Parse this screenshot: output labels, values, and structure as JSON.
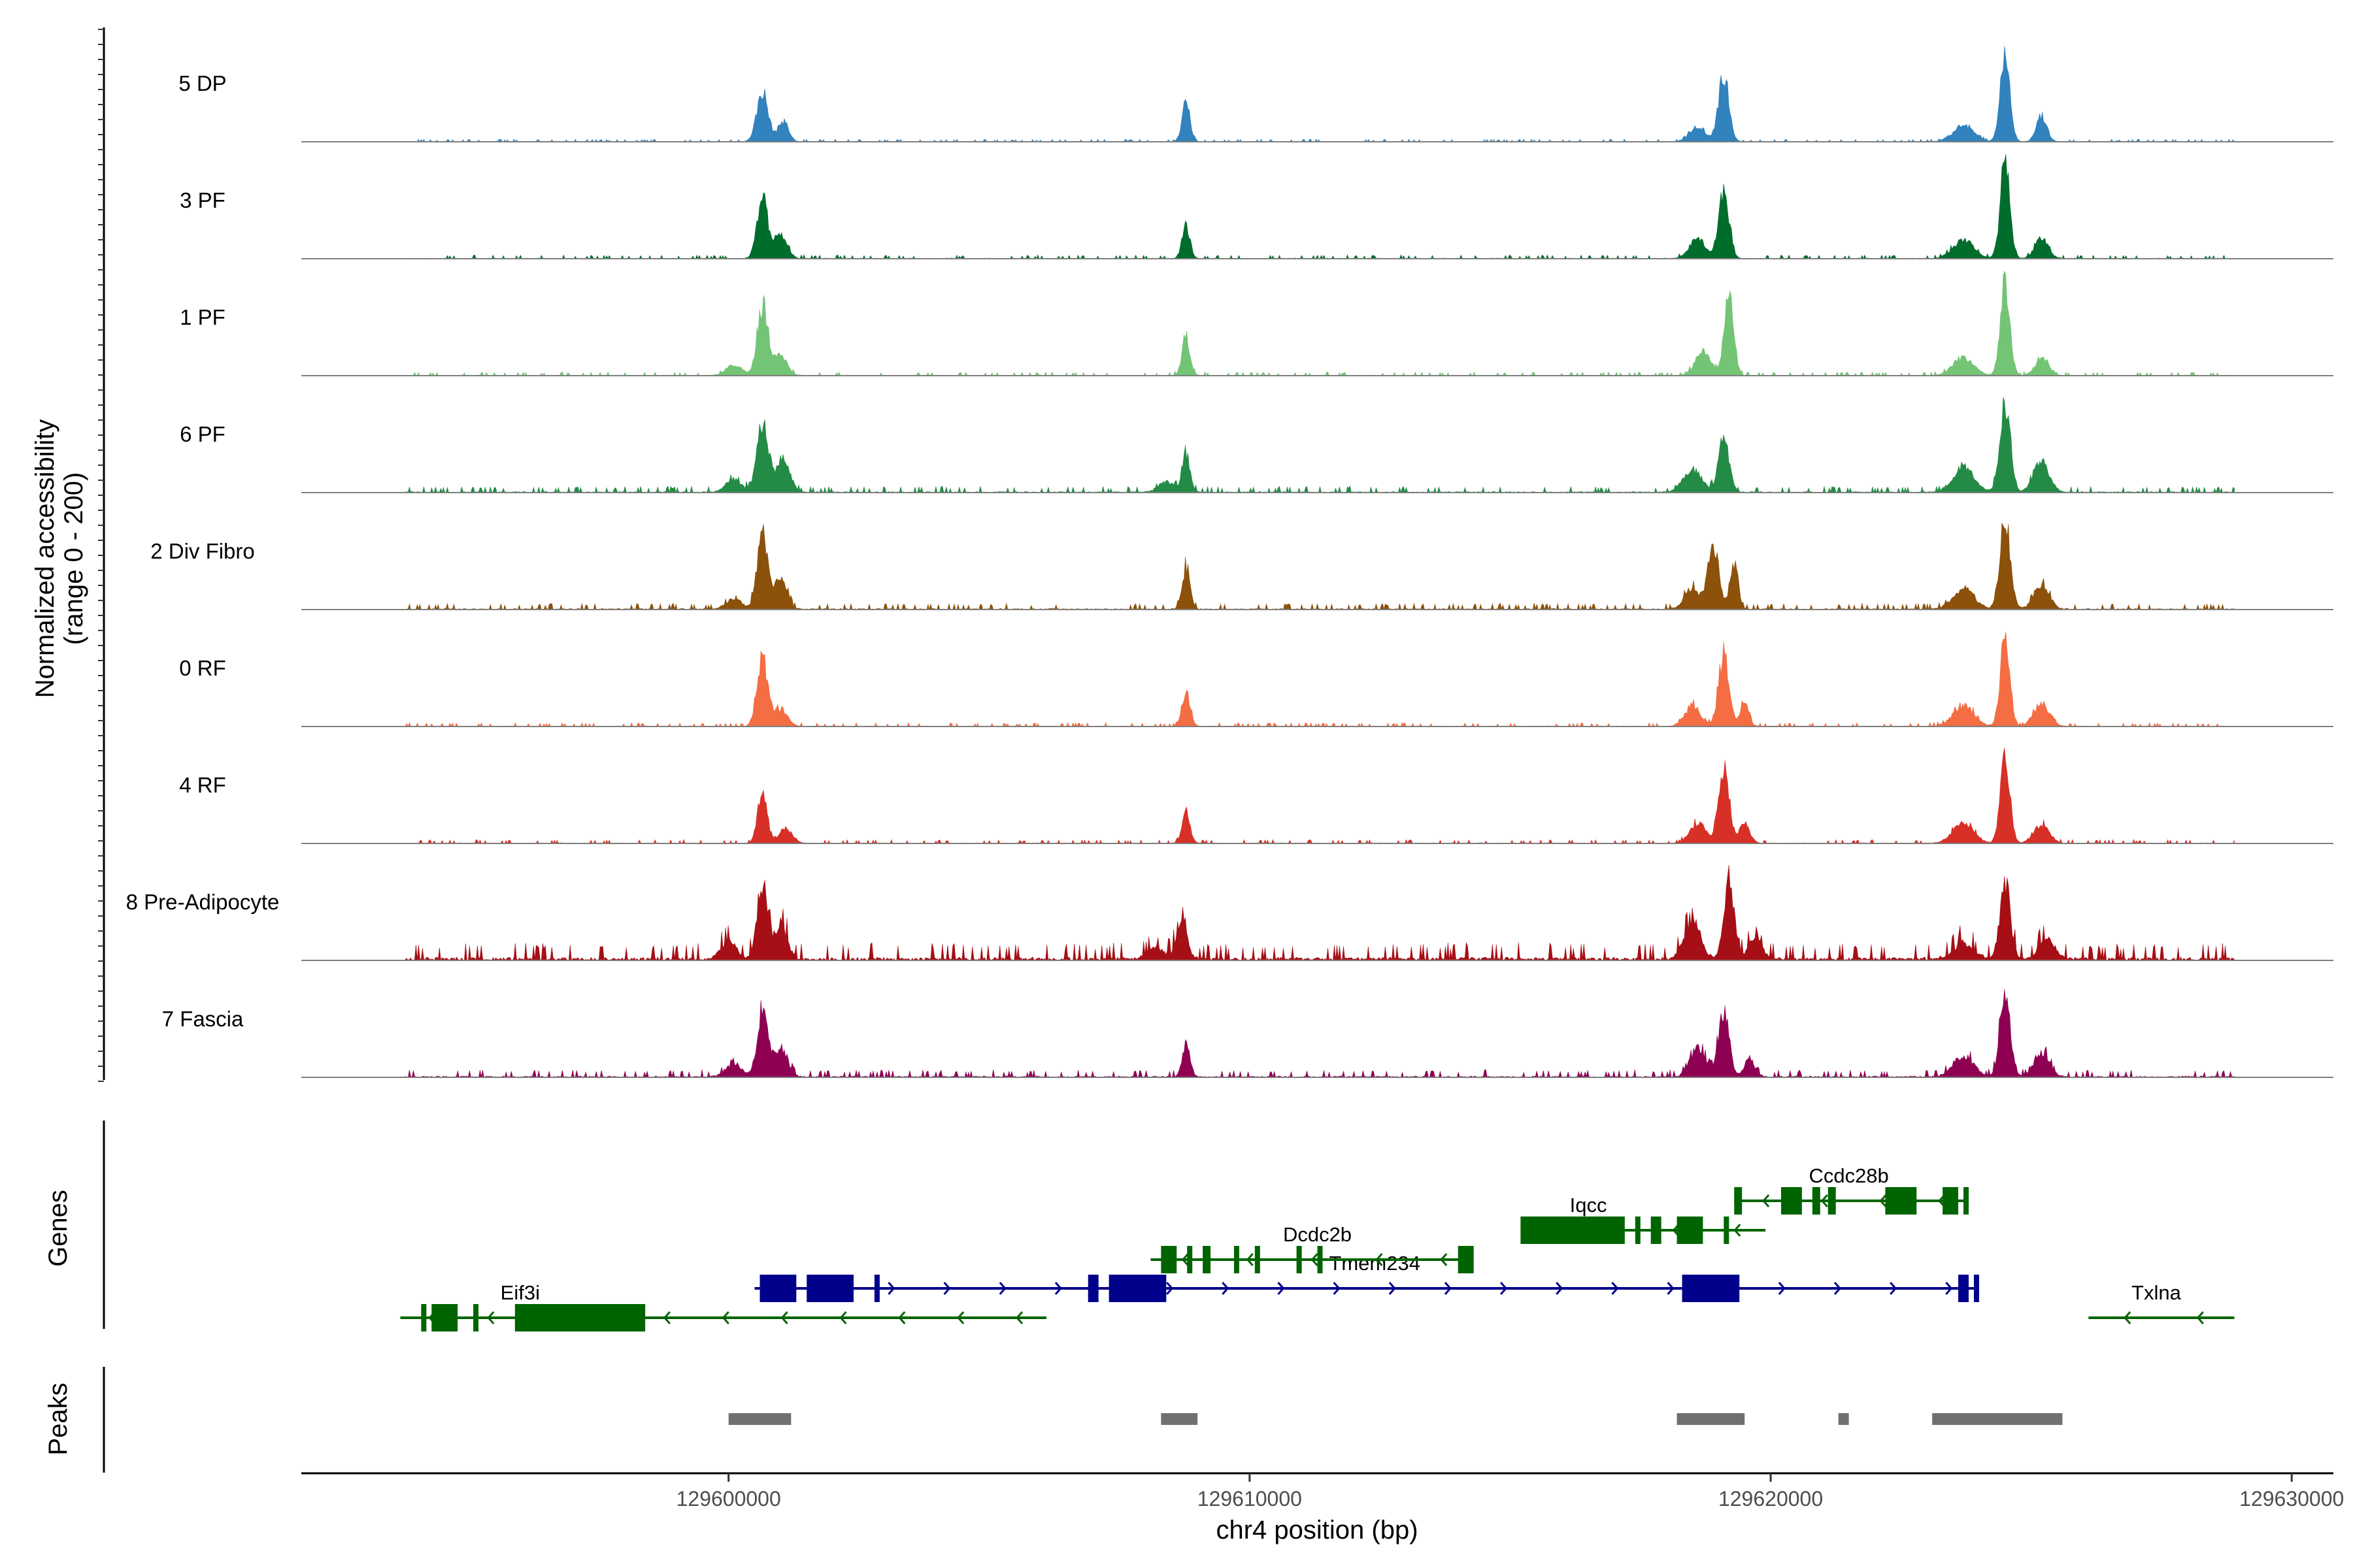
{
  "chart_data": {
    "type": "area",
    "title": "",
    "ylabel_line1": "Normalized accessibility",
    "ylabel_line2": "(range 0 - 200)",
    "ylim": [
      0,
      200
    ],
    "xlabel": "chr4 position (bp)",
    "xlim": [
      129591800,
      129630800
    ],
    "xticks": [
      {
        "value": 129600000,
        "label": "129600000"
      },
      {
        "value": 129610000,
        "label": "129610000"
      },
      {
        "value": 129620000,
        "label": "129620000"
      },
      {
        "value": 129630000,
        "label": "129630000"
      }
    ],
    "panel_labels": {
      "genes": "Genes",
      "peaks": "Peaks"
    },
    "peak_positions_kb": [
      129600.7,
      129608.8,
      129619.2,
      129624.4
    ],
    "series": [
      {
        "name": "5 DP",
        "color": "#3182bd",
        "noise": 2,
        "peaks": [
          {
            "pos": 129600.65,
            "height": 95,
            "width": 0.22
          },
          {
            "pos": 129601.05,
            "height": 40,
            "width": 0.2
          },
          {
            "pos": 129608.78,
            "height": 75,
            "width": 0.15
          },
          {
            "pos": 129619.1,
            "height": 130,
            "width": 0.2
          },
          {
            "pos": 129618.6,
            "height": 30,
            "width": 0.3
          },
          {
            "pos": 129624.5,
            "height": 180,
            "width": 0.18
          },
          {
            "pos": 129625.2,
            "height": 50,
            "width": 0.2
          },
          {
            "pos": 129623.7,
            "height": 30,
            "width": 0.4
          }
        ]
      },
      {
        "name": "3 PF",
        "color": "#006d2c",
        "noise": 3,
        "peaks": [
          {
            "pos": 129600.65,
            "height": 120,
            "width": 0.2
          },
          {
            "pos": 129601.0,
            "height": 45,
            "width": 0.25
          },
          {
            "pos": 129608.78,
            "height": 65,
            "width": 0.15
          },
          {
            "pos": 129619.1,
            "height": 130,
            "width": 0.2
          },
          {
            "pos": 129618.6,
            "height": 40,
            "width": 0.3
          },
          {
            "pos": 129624.5,
            "height": 190,
            "width": 0.18
          },
          {
            "pos": 129625.2,
            "height": 40,
            "width": 0.25
          },
          {
            "pos": 129623.7,
            "height": 35,
            "width": 0.4
          }
        ]
      },
      {
        "name": "1 PF",
        "color": "#74c476",
        "noise": 3,
        "peaks": [
          {
            "pos": 129600.65,
            "height": 140,
            "width": 0.2
          },
          {
            "pos": 129601.0,
            "height": 40,
            "width": 0.25
          },
          {
            "pos": 129600.1,
            "height": 20,
            "width": 0.3
          },
          {
            "pos": 129608.78,
            "height": 75,
            "width": 0.15
          },
          {
            "pos": 129619.2,
            "height": 155,
            "width": 0.18
          },
          {
            "pos": 129618.7,
            "height": 45,
            "width": 0.3
          },
          {
            "pos": 129624.5,
            "height": 185,
            "width": 0.18
          },
          {
            "pos": 129625.2,
            "height": 35,
            "width": 0.25
          },
          {
            "pos": 129623.7,
            "height": 35,
            "width": 0.4
          }
        ]
      },
      {
        "name": "6 PF",
        "color": "#238b45",
        "noise": 5,
        "peaks": [
          {
            "pos": 129600.65,
            "height": 135,
            "width": 0.22
          },
          {
            "pos": 129601.05,
            "height": 70,
            "width": 0.25
          },
          {
            "pos": 129600.1,
            "height": 25,
            "width": 0.3
          },
          {
            "pos": 129608.78,
            "height": 75,
            "width": 0.15
          },
          {
            "pos": 129608.4,
            "height": 20,
            "width": 0.3
          },
          {
            "pos": 129619.1,
            "height": 105,
            "width": 0.2
          },
          {
            "pos": 129618.5,
            "height": 45,
            "width": 0.35
          },
          {
            "pos": 129624.5,
            "height": 175,
            "width": 0.2
          },
          {
            "pos": 129625.2,
            "height": 60,
            "width": 0.3
          },
          {
            "pos": 129623.7,
            "height": 50,
            "width": 0.4
          }
        ]
      },
      {
        "name": "2 Div Fibro",
        "color": "#8c510a",
        "noise": 5,
        "peaks": [
          {
            "pos": 129600.65,
            "height": 145,
            "width": 0.2
          },
          {
            "pos": 129601.0,
            "height": 55,
            "width": 0.25
          },
          {
            "pos": 129600.1,
            "height": 20,
            "width": 0.3
          },
          {
            "pos": 129608.78,
            "height": 80,
            "width": 0.15
          },
          {
            "pos": 129618.9,
            "height": 130,
            "width": 0.2
          },
          {
            "pos": 129619.3,
            "height": 90,
            "width": 0.15
          },
          {
            "pos": 129618.5,
            "height": 40,
            "width": 0.3
          },
          {
            "pos": 129624.5,
            "height": 175,
            "width": 0.2
          },
          {
            "pos": 129625.2,
            "height": 45,
            "width": 0.3
          },
          {
            "pos": 129623.7,
            "height": 40,
            "width": 0.4
          }
        ]
      },
      {
        "name": "0 RF",
        "color": "#f46d43",
        "noise": 3,
        "peaks": [
          {
            "pos": 129600.65,
            "height": 135,
            "width": 0.2
          },
          {
            "pos": 129601.0,
            "height": 35,
            "width": 0.25
          },
          {
            "pos": 129608.78,
            "height": 70,
            "width": 0.15
          },
          {
            "pos": 129619.1,
            "height": 140,
            "width": 0.2
          },
          {
            "pos": 129618.5,
            "height": 40,
            "width": 0.3
          },
          {
            "pos": 129619.5,
            "height": 55,
            "width": 0.15
          },
          {
            "pos": 129624.5,
            "height": 175,
            "width": 0.18
          },
          {
            "pos": 129625.2,
            "height": 45,
            "width": 0.3
          },
          {
            "pos": 129623.7,
            "height": 40,
            "width": 0.4
          }
        ]
      },
      {
        "name": "4 RF",
        "color": "#d73027",
        "noise": 3,
        "peaks": [
          {
            "pos": 129600.65,
            "height": 100,
            "width": 0.18
          },
          {
            "pos": 129601.1,
            "height": 30,
            "width": 0.25
          },
          {
            "pos": 129608.78,
            "height": 65,
            "width": 0.15
          },
          {
            "pos": 129619.1,
            "height": 150,
            "width": 0.2
          },
          {
            "pos": 129618.6,
            "height": 40,
            "width": 0.3
          },
          {
            "pos": 129619.5,
            "height": 40,
            "width": 0.2
          },
          {
            "pos": 129624.5,
            "height": 170,
            "width": 0.18
          },
          {
            "pos": 129625.2,
            "height": 35,
            "width": 0.3
          },
          {
            "pos": 129623.7,
            "height": 40,
            "width": 0.4
          }
        ]
      },
      {
        "name": "8 Pre-Adipocyte",
        "color": "#a50f15",
        "noise": 14,
        "peaks": [
          {
            "pos": 129600.65,
            "height": 145,
            "width": 0.2
          },
          {
            "pos": 129601.0,
            "height": 70,
            "width": 0.25
          },
          {
            "pos": 129600.0,
            "height": 35,
            "width": 0.3
          },
          {
            "pos": 129608.7,
            "height": 75,
            "width": 0.2
          },
          {
            "pos": 129608.2,
            "height": 25,
            "width": 0.3
          },
          {
            "pos": 129619.2,
            "height": 160,
            "width": 0.2
          },
          {
            "pos": 129618.5,
            "height": 75,
            "width": 0.3
          },
          {
            "pos": 129619.7,
            "height": 45,
            "width": 0.25
          },
          {
            "pos": 129624.5,
            "height": 150,
            "width": 0.2
          },
          {
            "pos": 129625.3,
            "height": 40,
            "width": 0.3
          },
          {
            "pos": 129623.7,
            "height": 30,
            "width": 0.4
          }
        ]
      },
      {
        "name": "7 Fascia",
        "color": "#8e0152",
        "noise": 6,
        "peaks": [
          {
            "pos": 129600.65,
            "height": 125,
            "width": 0.2
          },
          {
            "pos": 129601.0,
            "height": 60,
            "width": 0.25
          },
          {
            "pos": 129600.1,
            "height": 25,
            "width": 0.3
          },
          {
            "pos": 129608.78,
            "height": 65,
            "width": 0.15
          },
          {
            "pos": 129619.1,
            "height": 135,
            "width": 0.2
          },
          {
            "pos": 129618.6,
            "height": 55,
            "width": 0.3
          },
          {
            "pos": 129619.6,
            "height": 35,
            "width": 0.2
          },
          {
            "pos": 129624.5,
            "height": 160,
            "width": 0.2
          },
          {
            "pos": 129625.2,
            "height": 45,
            "width": 0.3
          },
          {
            "pos": 129623.7,
            "height": 40,
            "width": 0.4
          }
        ]
      }
    ],
    "genes": [
      {
        "name": "Eif3i",
        "strand": "-",
        "color": "#006400",
        "row": 3,
        "start": 129593.7,
        "end": 129606.1,
        "exons": [
          [
            129594.1,
            129594.2
          ],
          [
            129594.3,
            129594.8
          ],
          [
            129595.1,
            129595.2
          ],
          [
            129595.9,
            129598.4
          ]
        ],
        "label_pos": 129596.0
      },
      {
        "name": "Tmem234",
        "strand": "+",
        "color": "#00008b",
        "row": 2,
        "start": 129600.5,
        "end": 129624.0,
        "exons": [
          [
            129600.6,
            129601.3
          ],
          [
            129601.5,
            129602.4
          ],
          [
            129602.8,
            129602.9
          ],
          [
            129606.9,
            129607.1
          ],
          [
            129607.3,
            129608.4
          ],
          [
            129618.3,
            129619.4
          ],
          [
            129623.6,
            129623.8
          ],
          [
            129623.9,
            129624.0
          ]
        ],
        "label_pos": 129612.4
      },
      {
        "name": "Dcdc2b",
        "strand": "-",
        "color": "#006400",
        "row": 1,
        "start": 129608.1,
        "end": 129614.3,
        "exons": [
          [
            129608.3,
            129608.6
          ],
          [
            129608.8,
            129608.9
          ],
          [
            129609.1,
            129609.25
          ],
          [
            129609.7,
            129609.8
          ],
          [
            129610.1,
            129610.2
          ],
          [
            129610.9,
            129611.0
          ],
          [
            129611.3,
            129611.4
          ],
          [
            129614.0,
            129614.3
          ]
        ],
        "label_pos": 129611.3
      },
      {
        "name": "Iqcc",
        "strand": "-",
        "color": "#006400",
        "row": 0,
        "start": 129615.2,
        "end": 129619.9,
        "exons": [
          [
            129615.2,
            129617.2
          ],
          [
            129617.4,
            129617.5
          ],
          [
            129617.7,
            129617.9
          ],
          [
            129618.2,
            129618.7
          ],
          [
            129619.1,
            129619.2
          ]
        ],
        "label_pos": 129616.5
      },
      {
        "name": "Ccdc28b",
        "strand": "-",
        "color": "#006400",
        "row": -1,
        "start": 129619.3,
        "end": 129623.8,
        "exons": [
          [
            129619.3,
            129619.45
          ],
          [
            129620.2,
            129620.6
          ],
          [
            129620.8,
            129620.95
          ],
          [
            129621.1,
            129621.25
          ],
          [
            129622.2,
            129622.8
          ],
          [
            129623.3,
            129623.6
          ],
          [
            129623.7,
            129623.8
          ]
        ],
        "label_pos": 129621.5
      },
      {
        "name": "Txlna",
        "strand": "-",
        "color": "#006400",
        "row": 3,
        "start": 129626.1,
        "end": 129628.9,
        "exons": [],
        "label_pos": 129627.4
      }
    ],
    "peaks": [
      {
        "start": 129600.0,
        "end": 129601.2
      },
      {
        "start": 129608.3,
        "end": 129609.0
      },
      {
        "start": 129618.2,
        "end": 129619.5
      },
      {
        "start": 129621.3,
        "end": 129621.5
      },
      {
        "start": 129623.1,
        "end": 129625.6
      }
    ],
    "colors": {
      "axis": "#000000",
      "baseline": "#7f7f7f",
      "peak_bar": "#707070"
    }
  }
}
